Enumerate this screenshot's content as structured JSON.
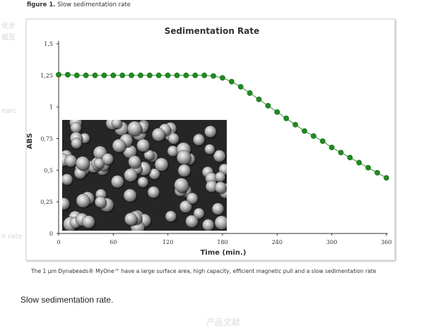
{
  "figure_label": {
    "prefix": "figure 1.",
    "text": "Slow sedimentation rate"
  },
  "background_fragments": [
    "化步",
    "细互",
    "earc",
    "n rate",
    "产品文献"
  ],
  "caption": "The 1 µm Dynabeads® MyOne™ have a large surface area, high capacity, efficient magnetic pull and a slow sedimentation rate",
  "footer_caption": "Slow sedimentation rate.",
  "colors": {
    "series": "#1f8a1f",
    "line": "#3a8a3a",
    "frame": "#cfcfcf",
    "axis": "#333333"
  },
  "chart_data": {
    "type": "line",
    "title": "Sedimentation Rate",
    "xlabel": "Time (min.)",
    "ylabel": "ABS",
    "xlim": [
      0,
      360
    ],
    "ylim": [
      0,
      1.5
    ],
    "x_ticks": [
      0,
      60,
      120,
      180,
      240,
      300,
      360
    ],
    "x_tick_labels": [
      "0",
      "60",
      "120",
      "180",
      "240",
      "300",
      "360"
    ],
    "y_ticks": [
      0,
      0.25,
      0.5,
      0.75,
      1,
      1.25,
      1.5
    ],
    "y_tick_labels": [
      "0",
      "0,25",
      "0,5",
      "0,75",
      "1",
      "1,25",
      "1,5"
    ],
    "grid": false,
    "series": [
      {
        "x": [
          0,
          10,
          20,
          30,
          40,
          50,
          60,
          70,
          80,
          90,
          100,
          110,
          120,
          130,
          140,
          150,
          160,
          170,
          180,
          190,
          200,
          210,
          220,
          230,
          240,
          250,
          260,
          270,
          280,
          290,
          300,
          310,
          320,
          330,
          340,
          350,
          360
        ],
        "y": [
          1.255,
          1.255,
          1.25,
          1.25,
          1.25,
          1.25,
          1.25,
          1.25,
          1.25,
          1.25,
          1.25,
          1.25,
          1.25,
          1.25,
          1.25,
          1.25,
          1.25,
          1.245,
          1.23,
          1.2,
          1.16,
          1.11,
          1.06,
          1.01,
          0.96,
          0.91,
          0.86,
          0.81,
          0.77,
          0.73,
          0.68,
          0.64,
          0.6,
          0.56,
          0.52,
          0.48,
          0.44
        ]
      }
    ],
    "inset": {
      "description": "microscope image of beads"
    }
  }
}
